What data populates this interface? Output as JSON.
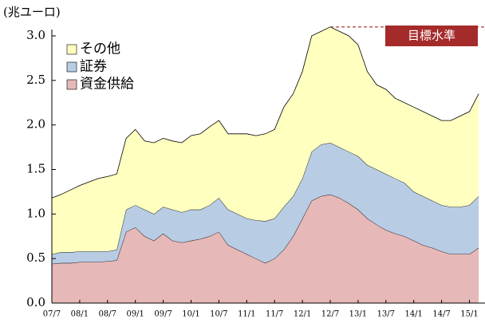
{
  "chart_data": {
    "type": "stacked_area",
    "y_label": "(兆ユーロ)",
    "categories": [
      "07/7",
      null,
      null,
      "08/1",
      null,
      null,
      "08/7",
      null,
      null,
      "09/1",
      null,
      null,
      "09/7",
      null,
      null,
      "10/1",
      null,
      null,
      "10/7",
      null,
      null,
      "11/1",
      null,
      null,
      "11/7",
      null,
      null,
      "12/1",
      null,
      null,
      "12/7",
      null,
      null,
      "13/1",
      null,
      null,
      "13/7",
      null,
      null,
      "14/1",
      null,
      null,
      "14/7",
      null,
      null,
      "15/1",
      null
    ],
    "series": [
      {
        "name": "資金供給",
        "color": "#e6b8b7",
        "values": [
          0.44,
          0.45,
          0.45,
          0.46,
          0.46,
          0.46,
          0.47,
          0.48,
          0.8,
          0.85,
          0.75,
          0.7,
          0.78,
          0.7,
          0.68,
          0.7,
          0.72,
          0.75,
          0.8,
          0.65,
          0.6,
          0.55,
          0.5,
          0.45,
          0.5,
          0.6,
          0.75,
          0.95,
          1.15,
          1.2,
          1.22,
          1.18,
          1.12,
          1.05,
          0.95,
          0.88,
          0.82,
          0.78,
          0.75,
          0.7,
          0.65,
          0.62,
          0.58,
          0.55,
          0.55,
          0.55,
          0.62
        ]
      },
      {
        "name": "証券",
        "color": "#b8cce4",
        "values": [
          0.11,
          0.12,
          0.12,
          0.12,
          0.12,
          0.12,
          0.11,
          0.12,
          0.25,
          0.25,
          0.3,
          0.3,
          0.3,
          0.35,
          0.34,
          0.35,
          0.33,
          0.35,
          0.38,
          0.4,
          0.4,
          0.4,
          0.43,
          0.47,
          0.45,
          0.48,
          0.45,
          0.45,
          0.55,
          0.58,
          0.58,
          0.57,
          0.58,
          0.6,
          0.6,
          0.62,
          0.63,
          0.62,
          0.6,
          0.55,
          0.55,
          0.53,
          0.52,
          0.53,
          0.53,
          0.55,
          0.58
        ]
      },
      {
        "name": "その他",
        "color": "#ffffc0",
        "values": [
          0.63,
          0.65,
          0.7,
          0.74,
          0.78,
          0.82,
          0.84,
          0.85,
          0.8,
          0.85,
          0.77,
          0.8,
          0.77,
          0.77,
          0.78,
          0.83,
          0.85,
          0.88,
          0.87,
          0.85,
          0.9,
          0.95,
          0.95,
          0.98,
          1.0,
          1.12,
          1.15,
          1.2,
          1.3,
          1.27,
          1.3,
          1.3,
          1.3,
          1.25,
          1.05,
          0.95,
          0.95,
          0.9,
          0.9,
          0.95,
          0.95,
          0.95,
          0.95,
          0.97,
          1.02,
          1.05,
          1.15
        ]
      }
    ],
    "target": {
      "label": "目標水準",
      "value": 3.1,
      "color": "#a52a2a"
    },
    "ylim": [
      0,
      3.0
    ],
    "yticks": [
      {
        "value": 0,
        "label": "0.0"
      },
      0.5,
      {
        "value": 1.0,
        "label": "1.0"
      },
      1.5,
      {
        "value": 2.0,
        "label": "2.0"
      },
      2.5,
      {
        "value": 3.0,
        "label": "3.0"
      }
    ],
    "legend": "upper left"
  }
}
